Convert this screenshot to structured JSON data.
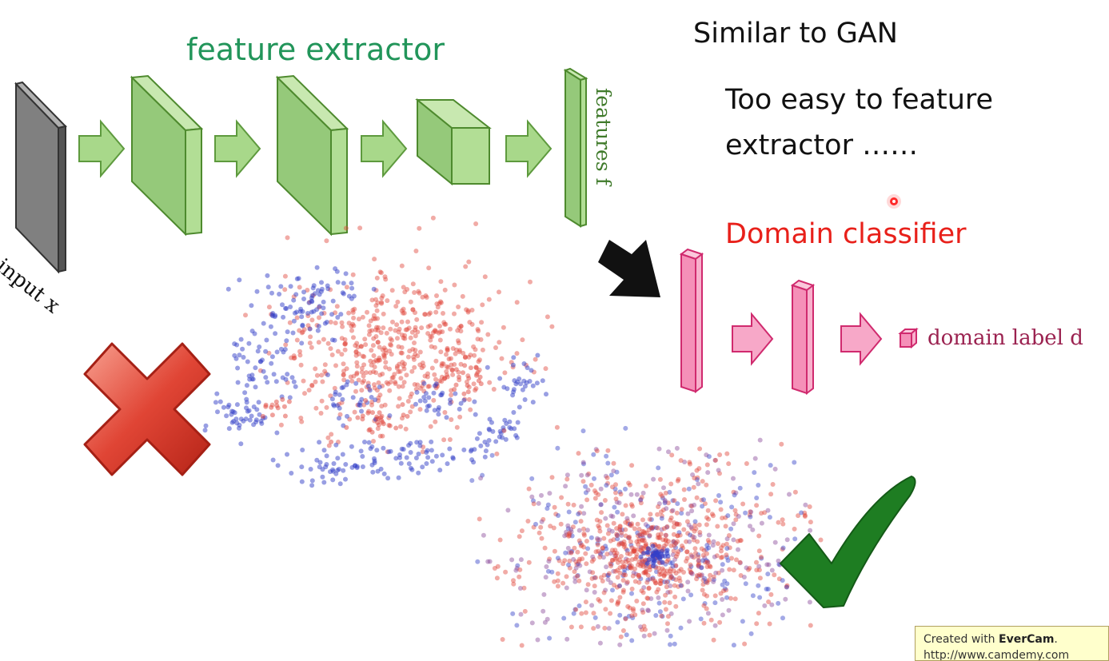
{
  "texts": {
    "feature_extractor": "feature extractor",
    "similar_gan": "Similar to GAN",
    "too_easy_line1": "Too easy to feature",
    "too_easy_line2": "extractor ……",
    "domain_classifier": "Domain classifier",
    "features_f": "features f",
    "input_x": "input x",
    "domain_label_d": "domain label d"
  },
  "watermark": {
    "prefix": "Created with ",
    "brand": "EverCam",
    "suffix": ".",
    "url": "http://www.camdemy.com"
  },
  "icons": [
    "cross-icon",
    "checkmark-icon",
    "big-arrow-icon",
    "laser-pointer-icon"
  ],
  "colors": {
    "feature_green": "#22955a",
    "block_green": "#a8d88a",
    "block_green_edge": "#4e8a2e",
    "classifier_pink": "#f7a8c8",
    "classifier_edge": "#d02a6e",
    "domain_red": "#e8201a",
    "source_blue": "#3340c8",
    "target_red": "#e0443a",
    "check_green": "#1e7d22",
    "cross_red": "#e04535"
  }
}
